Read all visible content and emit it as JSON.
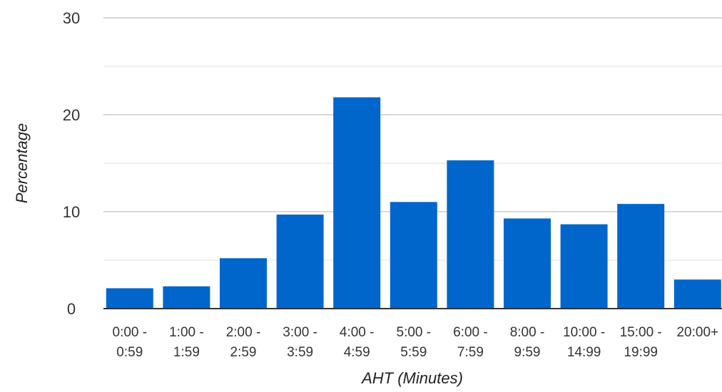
{
  "chart_data": {
    "type": "bar",
    "categories": [
      [
        "0:00 -",
        "0:59"
      ],
      [
        "1:00 -",
        "1:59"
      ],
      [
        "2:00 -",
        "2:59"
      ],
      [
        "3:00 -",
        "3:59"
      ],
      [
        "4:00 -",
        "4:59"
      ],
      [
        "5:00 -",
        "5:59"
      ],
      [
        "6:00 -",
        "7:59"
      ],
      [
        "8:00 -",
        "9:59"
      ],
      [
        "10:00 -",
        "14:99"
      ],
      [
        "15:00 -",
        "19:99"
      ],
      [
        "20:00+",
        ""
      ]
    ],
    "values": [
      2.1,
      2.3,
      5.2,
      9.7,
      21.8,
      11.0,
      15.3,
      9.3,
      8.7,
      10.8,
      3.0
    ],
    "xlabel": "AHT (Minutes)",
    "ylabel": "Percentage",
    "ylim": [
      0,
      30
    ],
    "yticks": [
      0,
      10,
      20,
      30
    ],
    "grid": true,
    "colors": {
      "bar": "#0066cc",
      "major_grid": "#cccccc",
      "minor_grid": "#ebebeb",
      "baseline": "#333333"
    }
  }
}
